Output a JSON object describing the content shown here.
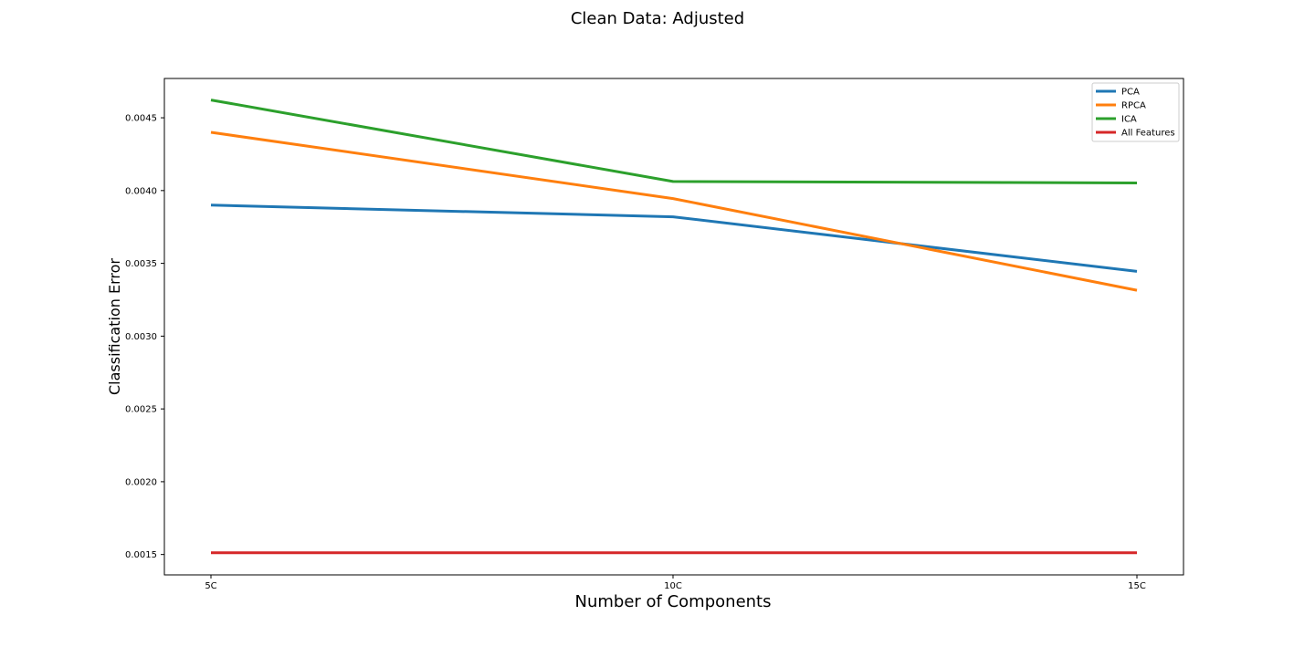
{
  "chart_data": {
    "type": "line",
    "title": "Clean Data: Adjusted",
    "xlabel": "Number of Components",
    "ylabel": "Classification Error",
    "categories": [
      "5C",
      "10C",
      "15C"
    ],
    "ylim": [
      0.00136,
      0.00477
    ],
    "yticks": [
      "0.0015",
      "0.0020",
      "0.0025",
      "0.0030",
      "0.0035",
      "0.0040",
      "0.0045"
    ],
    "grid": false,
    "legend_position": "top-right",
    "series": [
      {
        "name": "PCA",
        "color": "#1f77b4",
        "values": [
          0.0039,
          0.00382,
          0.003445
        ]
      },
      {
        "name": "RPCA",
        "color": "#ff7f0e",
        "values": [
          0.0044,
          0.003945,
          0.003315
        ]
      },
      {
        "name": "ICA",
        "color": "#2ca02c",
        "values": [
          0.004622,
          0.004062,
          0.004052
        ]
      },
      {
        "name": "All Features",
        "color": "#d62728",
        "values": [
          0.001512,
          0.001512,
          0.001512
        ]
      }
    ]
  }
}
